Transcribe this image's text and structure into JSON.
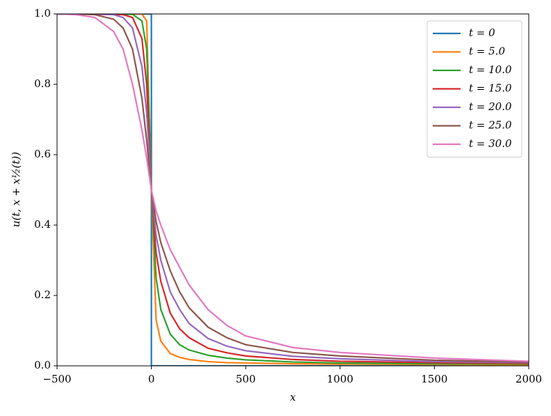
{
  "chart_data": {
    "type": "line",
    "xlabel": "x",
    "ylabel": "u(t, x + x½(t))",
    "xlim": [
      -500,
      2000
    ],
    "ylim": [
      0,
      1
    ],
    "xticks": [
      {
        "value": -500,
        "label": "−500"
      },
      0,
      500,
      1000,
      1500,
      2000
    ],
    "yticks": [
      {
        "value": 0,
        "label": "0.0"
      },
      0.2,
      0.4,
      0.6,
      0.8,
      {
        "value": 1,
        "label": "1.0"
      }
    ],
    "legend": "upper right",
    "grid": false,
    "series": [
      {
        "name": "t = 0",
        "color": "#1f77b4",
        "x": [
          -500,
          0,
          0,
          2000
        ],
        "values": [
          1,
          1,
          0,
          0
        ]
      },
      {
        "name": "t = 5.0",
        "color": "#ff7f0e",
        "x": [
          -500,
          -50,
          -25,
          0,
          25,
          50,
          100,
          150,
          200,
          300,
          400,
          500,
          750,
          1000,
          1500,
          2000
        ],
        "values": [
          1,
          1,
          0.98,
          0.5,
          0.13,
          0.07,
          0.035,
          0.024,
          0.018,
          0.012,
          0.009,
          0.008,
          0.006,
          0.005,
          0.004,
          0.003
        ]
      },
      {
        "name": "t = 10.0",
        "color": "#2ca02c",
        "x": [
          -500,
          -100,
          -50,
          -25,
          0,
          25,
          50,
          100,
          150,
          200,
          300,
          400,
          500,
          750,
          1000,
          1500,
          2000
        ],
        "values": [
          1,
          0.999,
          0.98,
          0.9,
          0.5,
          0.25,
          0.16,
          0.09,
          0.06,
          0.045,
          0.03,
          0.022,
          0.017,
          0.011,
          0.008,
          0.006,
          0.005
        ]
      },
      {
        "name": "t = 15.0",
        "color": "#d62728",
        "x": [
          -500,
          -150,
          -100,
          -50,
          -25,
          0,
          25,
          50,
          100,
          150,
          200,
          300,
          400,
          500,
          750,
          1000,
          1500,
          2000
        ],
        "values": [
          1,
          0.998,
          0.99,
          0.93,
          0.8,
          0.5,
          0.32,
          0.24,
          0.15,
          0.105,
          0.08,
          0.05,
          0.037,
          0.028,
          0.018,
          0.013,
          0.009,
          0.007
        ]
      },
      {
        "name": "t = 20.0",
        "color": "#9467bd",
        "x": [
          -500,
          -300,
          -200,
          -150,
          -100,
          -50,
          -25,
          0,
          25,
          50,
          100,
          150,
          200,
          300,
          400,
          500,
          750,
          1000,
          1500,
          2000
        ],
        "values": [
          1,
          1,
          0.998,
          0.99,
          0.96,
          0.85,
          0.72,
          0.5,
          0.37,
          0.3,
          0.21,
          0.16,
          0.12,
          0.078,
          0.056,
          0.043,
          0.027,
          0.02,
          0.012,
          0.009
        ]
      },
      {
        "name": "t = 25.0",
        "color": "#8c564b",
        "x": [
          -500,
          -400,
          -300,
          -200,
          -150,
          -100,
          -50,
          -25,
          0,
          25,
          50,
          100,
          150,
          200,
          300,
          400,
          500,
          750,
          1000,
          1500,
          2000
        ],
        "values": [
          1,
          1,
          0.998,
          0.985,
          0.96,
          0.9,
          0.76,
          0.64,
          0.5,
          0.41,
          0.35,
          0.27,
          0.21,
          0.165,
          0.11,
          0.08,
          0.06,
          0.038,
          0.028,
          0.016,
          0.011
        ]
      },
      {
        "name": "t = 30.0",
        "color": "#e377c2",
        "x": [
          -500,
          -400,
          -300,
          -200,
          -150,
          -100,
          -50,
          -25,
          0,
          25,
          50,
          100,
          150,
          200,
          300,
          400,
          500,
          750,
          1000,
          1500,
          2000
        ],
        "values": [
          1,
          0.998,
          0.99,
          0.95,
          0.9,
          0.8,
          0.67,
          0.59,
          0.5,
          0.44,
          0.4,
          0.33,
          0.28,
          0.23,
          0.16,
          0.115,
          0.085,
          0.052,
          0.038,
          0.022,
          0.013
        ]
      }
    ]
  }
}
